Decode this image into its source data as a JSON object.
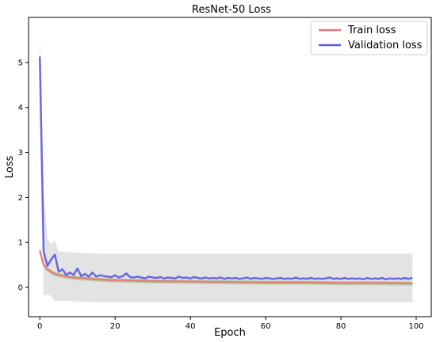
{
  "chart_data": {
    "type": "line",
    "title": "ResNet-50 Loss",
    "xlabel": "Epoch",
    "ylabel": "Loss",
    "xlim": [
      -3,
      104
    ],
    "ylim": [
      -0.65,
      6.0
    ],
    "xticks": [
      0,
      20,
      40,
      60,
      80,
      100
    ],
    "yticks": [
      0,
      1,
      2,
      3,
      4,
      5
    ],
    "legend": {
      "position": "top-right"
    },
    "grid": false,
    "series": [
      {
        "name": "Train loss",
        "color": "#e87878",
        "x": [
          0,
          1,
          2,
          3,
          4,
          6,
          8,
          10,
          12,
          15,
          20,
          25,
          30,
          40,
          50,
          60,
          70,
          80,
          90,
          99
        ],
        "y": [
          0.82,
          0.5,
          0.4,
          0.35,
          0.3,
          0.26,
          0.23,
          0.21,
          0.2,
          0.18,
          0.16,
          0.15,
          0.14,
          0.13,
          0.12,
          0.11,
          0.11,
          0.1,
          0.1,
          0.09
        ]
      },
      {
        "name": "Validation loss",
        "color": "#5a5ae6",
        "x": [
          0,
          1,
          2,
          3,
          4,
          5,
          6,
          7,
          8,
          9,
          10,
          11,
          12,
          13,
          14,
          15,
          16,
          17,
          18,
          19,
          20,
          21,
          22,
          23,
          24,
          25,
          26,
          27,
          28,
          29,
          30,
          31,
          32,
          33,
          34,
          35,
          36,
          37,
          38,
          39,
          40,
          41,
          42,
          43,
          44,
          45,
          46,
          47,
          48,
          49,
          50,
          51,
          52,
          53,
          54,
          55,
          56,
          57,
          58,
          59,
          60,
          61,
          62,
          63,
          64,
          65,
          66,
          67,
          68,
          69,
          70,
          71,
          72,
          73,
          74,
          75,
          76,
          77,
          78,
          79,
          80,
          81,
          82,
          83,
          84,
          85,
          86,
          87,
          88,
          89,
          90,
          91,
          92,
          93,
          94,
          95,
          96,
          97,
          98,
          99
        ],
        "y": [
          5.13,
          0.8,
          0.48,
          0.62,
          0.73,
          0.35,
          0.4,
          0.28,
          0.33,
          0.28,
          0.42,
          0.25,
          0.3,
          0.24,
          0.33,
          0.24,
          0.27,
          0.25,
          0.24,
          0.23,
          0.27,
          0.22,
          0.25,
          0.31,
          0.23,
          0.22,
          0.24,
          0.22,
          0.2,
          0.24,
          0.22,
          0.21,
          0.23,
          0.2,
          0.22,
          0.21,
          0.2,
          0.24,
          0.21,
          0.22,
          0.2,
          0.23,
          0.21,
          0.2,
          0.22,
          0.2,
          0.21,
          0.2,
          0.22,
          0.19,
          0.21,
          0.2,
          0.21,
          0.19,
          0.2,
          0.22,
          0.19,
          0.21,
          0.2,
          0.19,
          0.21,
          0.2,
          0.19,
          0.2,
          0.21,
          0.19,
          0.2,
          0.19,
          0.22,
          0.19,
          0.2,
          0.19,
          0.21,
          0.19,
          0.2,
          0.19,
          0.2,
          0.22,
          0.19,
          0.2,
          0.19,
          0.21,
          0.19,
          0.2,
          0.19,
          0.2,
          0.18,
          0.21,
          0.19,
          0.2,
          0.19,
          0.21,
          0.18,
          0.2,
          0.19,
          0.2,
          0.19,
          0.21,
          0.19,
          0.21
        ]
      }
    ],
    "bands": [
      {
        "color": "#cccccc",
        "x": [
          0,
          1,
          2,
          3,
          4,
          5,
          6,
          8,
          10,
          12,
          15,
          20,
          25,
          30,
          40,
          50,
          60,
          70,
          80,
          90,
          99
        ],
        "upper": [
          5.65,
          2.2,
          1.1,
          0.95,
          1.05,
          0.8,
          0.8,
          0.78,
          0.77,
          0.76,
          0.75,
          0.75,
          0.75,
          0.75,
          0.75,
          0.75,
          0.75,
          0.75,
          0.75,
          0.75,
          0.75
        ],
        "lower": [
          4.6,
          -0.2,
          -0.15,
          -0.2,
          -0.3,
          -0.3,
          -0.3,
          -0.3,
          -0.32,
          -0.32,
          -0.33,
          -0.33,
          -0.33,
          -0.33,
          -0.33,
          -0.33,
          -0.33,
          -0.33,
          -0.33,
          -0.33,
          -0.33
        ]
      },
      {
        "color": "#a8cc98",
        "x": [
          0,
          1,
          2,
          3,
          4,
          6,
          8,
          10,
          12,
          15,
          20,
          25,
          30,
          40,
          50,
          60,
          70,
          80,
          90,
          99
        ],
        "upper": [
          0.85,
          0.54,
          0.44,
          0.39,
          0.34,
          0.3,
          0.27,
          0.25,
          0.24,
          0.22,
          0.2,
          0.19,
          0.18,
          0.17,
          0.16,
          0.15,
          0.15,
          0.14,
          0.14,
          0.13
        ],
        "lower": [
          0.78,
          0.46,
          0.36,
          0.3,
          0.25,
          0.21,
          0.18,
          0.16,
          0.15,
          0.13,
          0.11,
          0.1,
          0.09,
          0.08,
          0.07,
          0.06,
          0.06,
          0.05,
          0.05,
          0.04
        ]
      }
    ]
  }
}
